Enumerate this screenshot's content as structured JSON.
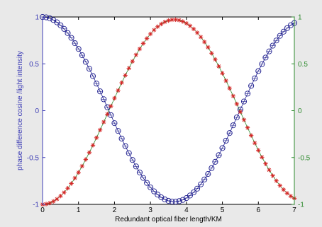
{
  "chart_data": {
    "type": "line",
    "xlabel": "Redundant optical fiber length/KM",
    "ylabel_left": "phase difference cosine /light intensity",
    "xlim": [
      0,
      7
    ],
    "ylim_left": [
      -1,
      1
    ],
    "ylim_right": [
      -1,
      1
    ],
    "xticks": [
      "0",
      "1",
      "2",
      "3",
      "4",
      "5",
      "6",
      "7"
    ],
    "yticks_left": [
      "-1",
      "-0.5",
      "0",
      "0.5",
      "1"
    ],
    "yticks_right": [
      "-1",
      "-0.5",
      "0",
      "0.5",
      "1"
    ],
    "grid": false,
    "colors": {
      "left_axis": "#3d3db5",
      "right_axis": "#2e8b2e",
      "series_cosine": "#1f1f8f",
      "series_intensity": "#d42020",
      "background": "#e9e9e9",
      "plot_area": "#ffffff"
    },
    "series": [
      {
        "axis": "left",
        "marker": "circle",
        "x": [
          0,
          0.1,
          0.2,
          0.3,
          0.4,
          0.5,
          0.6,
          0.7,
          0.8,
          0.9,
          1.0,
          1.1,
          1.2,
          1.3,
          1.4,
          1.5,
          1.6,
          1.7,
          1.8,
          1.9,
          2.0,
          2.1,
          2.2,
          2.3,
          2.4,
          2.5,
          2.6,
          2.7,
          2.8,
          2.9,
          3.0,
          3.1,
          3.2,
          3.3,
          3.4,
          3.5,
          3.6,
          3.7,
          3.8,
          3.9,
          4.0,
          4.1,
          4.2,
          4.3,
          4.4,
          4.5,
          4.6,
          4.7,
          4.8,
          4.9,
          5.0,
          5.1,
          5.2,
          5.3,
          5.4,
          5.5,
          5.6,
          5.7,
          5.8,
          5.9,
          6.0,
          6.1,
          6.2,
          6.3,
          6.4,
          6.5,
          6.6,
          6.7,
          6.8,
          6.9,
          7.0
        ],
        "y": [
          1.0,
          0.996,
          0.986,
          0.968,
          0.943,
          0.911,
          0.873,
          0.828,
          0.777,
          0.72,
          0.659,
          0.592,
          0.521,
          0.447,
          0.369,
          0.289,
          0.206,
          0.122,
          0.037,
          -0.048,
          -0.133,
          -0.216,
          -0.298,
          -0.377,
          -0.453,
          -0.526,
          -0.595,
          -0.659,
          -0.718,
          -0.771,
          -0.819,
          -0.861,
          -0.896,
          -0.925,
          -0.947,
          -0.962,
          -0.97,
          -0.971,
          -0.965,
          -0.952,
          -0.932,
          -0.905,
          -0.872,
          -0.832,
          -0.786,
          -0.734,
          -0.676,
          -0.613,
          -0.546,
          -0.474,
          -0.399,
          -0.32,
          -0.239,
          -0.156,
          -0.072,
          0.013,
          0.098,
          0.182,
          0.265,
          0.345,
          0.423,
          0.497,
          0.567,
          0.633,
          0.694,
          0.749,
          0.799,
          0.843,
          0.881,
          0.912,
          0.936
        ]
      },
      {
        "axis": "right",
        "marker": "star",
        "x": [
          0,
          0.1,
          0.2,
          0.3,
          0.4,
          0.5,
          0.6,
          0.7,
          0.8,
          0.9,
          1.0,
          1.1,
          1.2,
          1.3,
          1.4,
          1.5,
          1.6,
          1.7,
          1.8,
          1.9,
          2.0,
          2.1,
          2.2,
          2.3,
          2.4,
          2.5,
          2.6,
          2.7,
          2.8,
          2.9,
          3.0,
          3.1,
          3.2,
          3.3,
          3.4,
          3.5,
          3.6,
          3.7,
          3.8,
          3.9,
          4.0,
          4.1,
          4.2,
          4.3,
          4.4,
          4.5,
          4.6,
          4.7,
          4.8,
          4.9,
          5.0,
          5.1,
          5.2,
          5.3,
          5.4,
          5.5,
          5.6,
          5.7,
          5.8,
          5.9,
          6.0,
          6.1,
          6.2,
          6.3,
          6.4,
          6.5,
          6.6,
          6.7,
          6.8,
          6.9,
          7.0
        ],
        "y": [
          -1.0,
          -0.996,
          -0.986,
          -0.968,
          -0.943,
          -0.911,
          -0.873,
          -0.828,
          -0.777,
          -0.72,
          -0.659,
          -0.592,
          -0.521,
          -0.447,
          -0.369,
          -0.289,
          -0.206,
          -0.122,
          -0.037,
          0.048,
          0.133,
          0.216,
          0.298,
          0.377,
          0.453,
          0.526,
          0.595,
          0.659,
          0.718,
          0.771,
          0.819,
          0.861,
          0.896,
          0.925,
          0.947,
          0.962,
          0.97,
          0.971,
          0.965,
          0.952,
          0.932,
          0.905,
          0.872,
          0.832,
          0.786,
          0.734,
          0.676,
          0.613,
          0.546,
          0.474,
          0.399,
          0.32,
          0.239,
          0.156,
          0.072,
          -0.013,
          -0.098,
          -0.182,
          -0.265,
          -0.345,
          -0.423,
          -0.497,
          -0.567,
          -0.633,
          -0.694,
          -0.749,
          -0.799,
          -0.843,
          -0.881,
          -0.912,
          -0.936
        ]
      }
    ]
  }
}
